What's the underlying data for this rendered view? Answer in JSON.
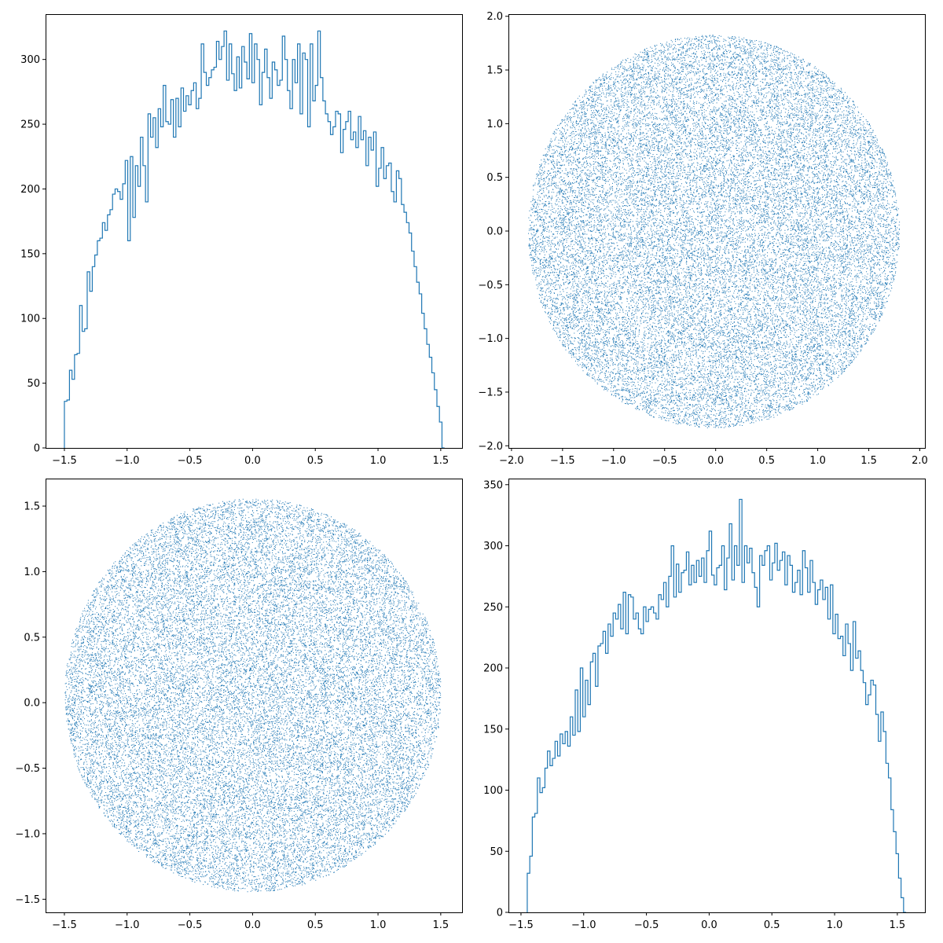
{
  "figure": {
    "background": "#ffffff",
    "line_color": "#1f77b4",
    "point_color": "#1f77b4"
  },
  "chart_data": [
    {
      "id": "top-left",
      "type": "histogram",
      "histtype": "step",
      "title": "",
      "xlabel": "",
      "ylabel": "",
      "xlim": [
        -1.65,
        1.67
      ],
      "ylim": [
        0,
        335
      ],
      "bin_range": [
        -1.5,
        1.53
      ],
      "xticks": [
        -1.5,
        -1.0,
        -0.5,
        0.0,
        0.5,
        1.0,
        1.5
      ],
      "xtick_labels": [
        "−1.5",
        "−1.0",
        "−0.5",
        "0.0",
        "0.5",
        "1.0",
        "1.5"
      ],
      "yticks": [
        0,
        50,
        100,
        150,
        200,
        250,
        300
      ],
      "ytick_labels": [
        "0",
        "50",
        "100",
        "150",
        "200",
        "250",
        "300"
      ],
      "counts": [
        36,
        37,
        60,
        53,
        72,
        73,
        110,
        90,
        92,
        136,
        121,
        140,
        149,
        160,
        162,
        174,
        168,
        180,
        184,
        196,
        200,
        198,
        192,
        204,
        222,
        160,
        225,
        178,
        218,
        202,
        240,
        218,
        190,
        258,
        240,
        255,
        232,
        262,
        248,
        280,
        252,
        250,
        269,
        240,
        270,
        248,
        278,
        260,
        272,
        265,
        276,
        282,
        262,
        270,
        312,
        290,
        280,
        286,
        292,
        294,
        314,
        300,
        310,
        322,
        284,
        312,
        289,
        276,
        302,
        278,
        310,
        298,
        285,
        320,
        282,
        312,
        300,
        265,
        290,
        308,
        286,
        270,
        298,
        292,
        280,
        284,
        318,
        300,
        276,
        262,
        300,
        282,
        312,
        258,
        305,
        300,
        248,
        312,
        268,
        280,
        322,
        286,
        268,
        258,
        252,
        242,
        248,
        260,
        258,
        228,
        246,
        252,
        260,
        238,
        244,
        232,
        256,
        238,
        245,
        218,
        240,
        230,
        244,
        202,
        216,
        232,
        208,
        218,
        220,
        198,
        190,
        214,
        208,
        188,
        182,
        174,
        166,
        152,
        140,
        128,
        119,
        104,
        92,
        80,
        70,
        58,
        45,
        32,
        20,
        0
      ],
      "grid": false,
      "legend": null
    },
    {
      "id": "top-right",
      "type": "scatter",
      "marker": "pixel",
      "title": "",
      "xlabel": "",
      "ylabel": "",
      "xlim": [
        -2.03,
        2.05
      ],
      "ylim": [
        -2.02,
        2.02
      ],
      "shape": {
        "kind": "disc",
        "center": [
          -0.02,
          0.0
        ],
        "radii": [
          1.82,
          1.83
        ]
      },
      "n_points_drawn": 28000,
      "xticks": [
        -2.0,
        -1.5,
        -1.0,
        -0.5,
        0.0,
        0.5,
        1.0,
        1.5,
        2.0
      ],
      "xtick_labels": [
        "−2.0",
        "−1.5",
        "−1.0",
        "−0.5",
        "0.0",
        "0.5",
        "1.0",
        "1.5",
        "2.0"
      ],
      "yticks": [
        -2.0,
        -1.5,
        -1.0,
        -0.5,
        0.0,
        0.5,
        1.0,
        1.5,
        2.0
      ],
      "ytick_labels": [
        "−2.0",
        "−1.5",
        "−1.0",
        "−0.5",
        "0.0",
        "0.5",
        "1.0",
        "1.5",
        "2.0"
      ],
      "grid": false,
      "legend": null
    },
    {
      "id": "bottom-left",
      "type": "scatter",
      "marker": "pixel",
      "title": "",
      "xlabel": "",
      "ylabel": "",
      "xlim": [
        -1.65,
        1.67
      ],
      "ylim": [
        -1.6,
        1.71
      ],
      "shape": {
        "kind": "disc",
        "center": [
          0.0,
          0.06
        ],
        "radii": [
          1.5,
          1.5
        ]
      },
      "n_points_drawn": 28000,
      "xticks": [
        -1.5,
        -1.0,
        -0.5,
        0.0,
        0.5,
        1.0,
        1.5
      ],
      "xtick_labels": [
        "−1.5",
        "−1.0",
        "−0.5",
        "0.0",
        "0.5",
        "1.0",
        "1.5"
      ],
      "yticks": [
        -1.5,
        -1.0,
        -0.5,
        0.0,
        0.5,
        1.0,
        1.5
      ],
      "ytick_labels": [
        "−1.5",
        "−1.0",
        "−0.5",
        "0.0",
        "0.5",
        "1.0",
        "1.5"
      ],
      "grid": false,
      "legend": null
    },
    {
      "id": "bottom-right",
      "type": "histogram",
      "histtype": "step",
      "title": "",
      "xlabel": "",
      "ylabel": "",
      "xlim": [
        -1.6,
        1.72
      ],
      "ylim": [
        0,
        355
      ],
      "bin_range": [
        -1.45,
        1.57
      ],
      "xticks": [
        -1.5,
        -1.0,
        -0.5,
        0.0,
        0.5,
        1.0,
        1.5
      ],
      "xtick_labels": [
        "−1.5",
        "−1.0",
        "−0.5",
        "0.0",
        "0.5",
        "1.0",
        "1.5"
      ],
      "yticks": [
        0,
        50,
        100,
        150,
        200,
        250,
        300,
        350
      ],
      "ytick_labels": [
        "0",
        "50",
        "100",
        "150",
        "200",
        "250",
        "300",
        "350"
      ],
      "counts": [
        32,
        46,
        78,
        81,
        110,
        98,
        102,
        118,
        132,
        120,
        126,
        140,
        128,
        146,
        138,
        148,
        136,
        160,
        145,
        182,
        148,
        200,
        160,
        190,
        170,
        205,
        212,
        185,
        218,
        220,
        230,
        212,
        236,
        226,
        245,
        240,
        252,
        232,
        262,
        228,
        260,
        258,
        240,
        245,
        232,
        228,
        250,
        238,
        248,
        250,
        245,
        240,
        260,
        256,
        270,
        250,
        275,
        300,
        258,
        285,
        262,
        278,
        280,
        295,
        268,
        284,
        270,
        288,
        275,
        290,
        270,
        296,
        312,
        276,
        268,
        282,
        284,
        300,
        264,
        290,
        318,
        272,
        300,
        284,
        338,
        270,
        300,
        286,
        298,
        278,
        266,
        250,
        292,
        284,
        296,
        300,
        272,
        286,
        302,
        280,
        288,
        295,
        268,
        292,
        284,
        262,
        270,
        280,
        260,
        296,
        282,
        262,
        288,
        270,
        252,
        264,
        272,
        256,
        266,
        240,
        268,
        228,
        244,
        224,
        226,
        210,
        236,
        220,
        198,
        238,
        208,
        214,
        198,
        188,
        170,
        178,
        190,
        186,
        162,
        140,
        164,
        148,
        122,
        110,
        84,
        66,
        48,
        28,
        12,
        0
      ],
      "grid": false,
      "legend": null
    }
  ]
}
